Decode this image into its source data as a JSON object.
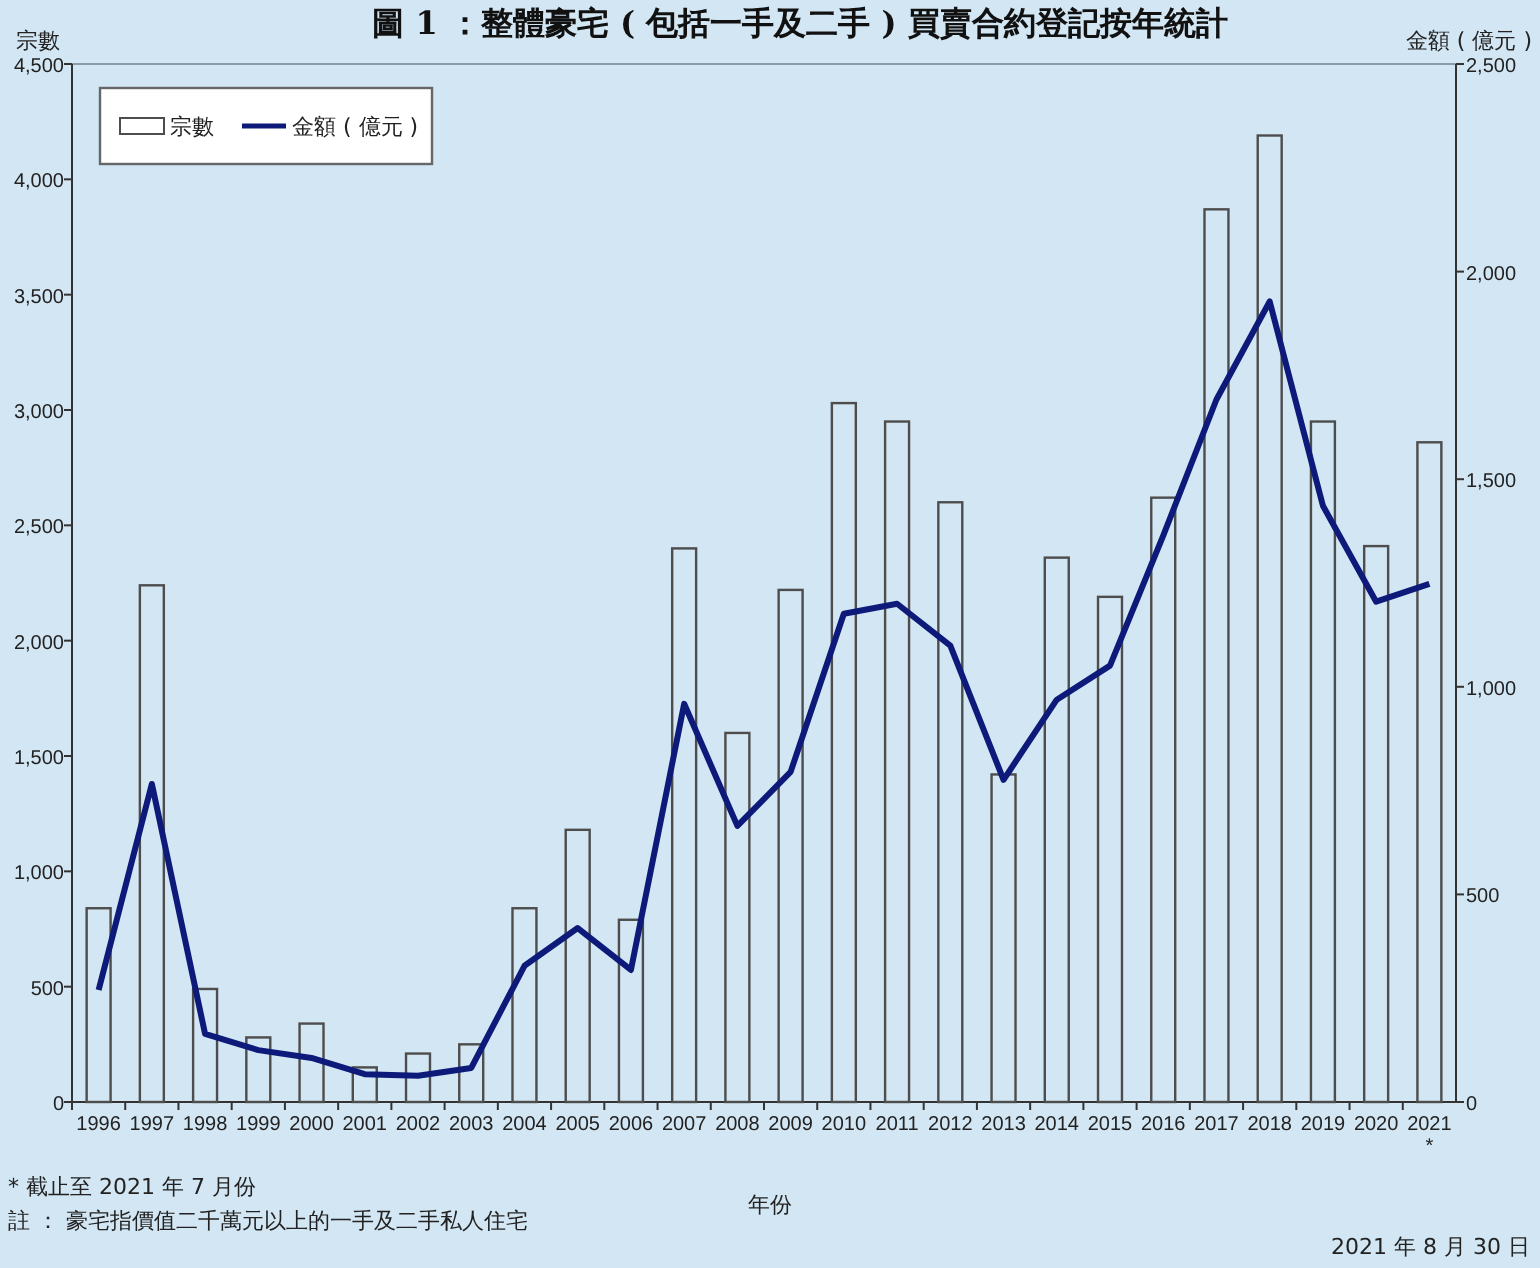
{
  "chart_data": {
    "type": "bar",
    "title": "圖 1 ：整體豪宅 ( 包括一手及二手 ) 買賣合約登記按年統計",
    "xlabel": "年份",
    "ylabel": "宗數",
    "y2label": "金額 ( 億元 )",
    "categories": [
      "1996",
      "1997",
      "1998",
      "1999",
      "2000",
      "2001",
      "2002",
      "2003",
      "2004",
      "2005",
      "2006",
      "2007",
      "2008",
      "2009",
      "2010",
      "2011",
      "2012",
      "2013",
      "2014",
      "2015",
      "2016",
      "2017",
      "2018",
      "2019",
      "2020",
      "2021\n*"
    ],
    "series": [
      {
        "name": "宗數",
        "color": "#4d4d4d",
        "values": [
          840,
          2240,
          490,
          280,
          340,
          150,
          210,
          250,
          840,
          1180,
          790,
          2400,
          1600,
          2220,
          3030,
          2950,
          2600,
          1420,
          2360,
          2190,
          2620,
          3870,
          4190,
          2950,
          2410,
          2860
        ]
      },
      {
        "name": "金額 ( 億元 )",
        "type": "line",
        "axis": "y2",
        "color": "#0d1a7a",
        "values": [
          270,
          766,
          164,
          125,
          106,
          67,
          63,
          82,
          328,
          419,
          318,
          959,
          665,
          795,
          1176,
          1200,
          1099,
          776,
          969,
          1051,
          1364,
          1692,
          1928,
          1436,
          1205,
          1248
        ]
      }
    ],
    "ylim": [
      0,
      4500
    ],
    "yticks": [
      0,
      {
        "value": 500,
        "label": "500"
      },
      {
        "value": 1000,
        "label": "1,000"
      },
      {
        "value": 1500,
        "label": "1,500"
      },
      {
        "value": 2000,
        "label": "2,000"
      },
      {
        "value": 2500,
        "label": "2,500"
      },
      {
        "value": 3000,
        "label": "3,000"
      },
      {
        "value": 3500,
        "label": "3,500"
      },
      {
        "value": 4000,
        "label": "4,000"
      },
      {
        "value": 4500,
        "label": "4,500"
      }
    ],
    "y2lim": [
      0,
      2500
    ],
    "y2ticks": [
      0,
      {
        "value": 500,
        "label": "500"
      },
      {
        "value": 1000,
        "label": "1,000"
      },
      {
        "value": 1500,
        "label": "1,500"
      },
      {
        "value": 2000,
        "label": "2,000"
      },
      {
        "value": 2500,
        "label": "2,500"
      }
    ],
    "legend": "top left",
    "annotations": [
      "* 截止至 2021 年 7 月份",
      "註 ： 豪宅指價值二千萬元以上的一手及二手私人住宅",
      "2021 年 8 月 30 日"
    ]
  }
}
